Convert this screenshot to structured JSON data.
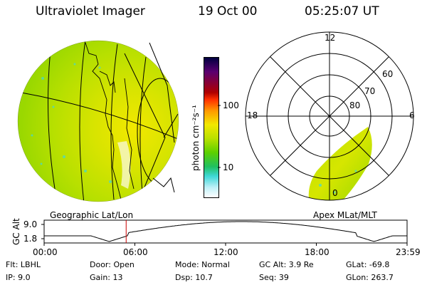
{
  "header": {
    "instrument": "Ultraviolet Imager",
    "date": "19 Oct 00",
    "time": "05:25:07 UT"
  },
  "left_panel": {
    "caption": "Geographic Lat/Lon"
  },
  "right_panel": {
    "caption": "Apex MLat/MLT",
    "mlt_labels": {
      "top": "12",
      "left": "18",
      "right": "6",
      "bottom": "0"
    },
    "lat_labels": [
      "60",
      "70",
      "80"
    ]
  },
  "colorbar": {
    "unit_label": "photon cm⁻²s⁻¹",
    "tick_labels": [
      "100",
      "10"
    ],
    "scale": "log",
    "colors": [
      "#000040",
      "#5a0070",
      "#b00000",
      "#ff3000",
      "#ff9900",
      "#f2e800",
      "#b8e000",
      "#5cd000",
      "#20c060",
      "#40d8d8",
      "#c0f0f8",
      "#ffffff"
    ]
  },
  "orbit_plot": {
    "ylabel": "GC Alt",
    "y_ticks": [
      "9.0",
      "1.8"
    ],
    "x_ticks": [
      "00:00",
      "06:00",
      "12:00",
      "18:00",
      "23:59"
    ],
    "marker_time_hours": 5.42,
    "marker_color": "#cc0000"
  },
  "footer": {
    "flt": "Flt: LBHL",
    "ip": "IP:  9.0",
    "door": "Door: Open",
    "gain": "Gain: 13",
    "mode": "Mode: Normal",
    "dsp": "Dsp:  10.7",
    "gcalt": "GC Alt: 3.9 Re",
    "seq": "Seq: 39",
    "glat": "GLat: -69.8",
    "glon": "GLon: 263.7"
  }
}
